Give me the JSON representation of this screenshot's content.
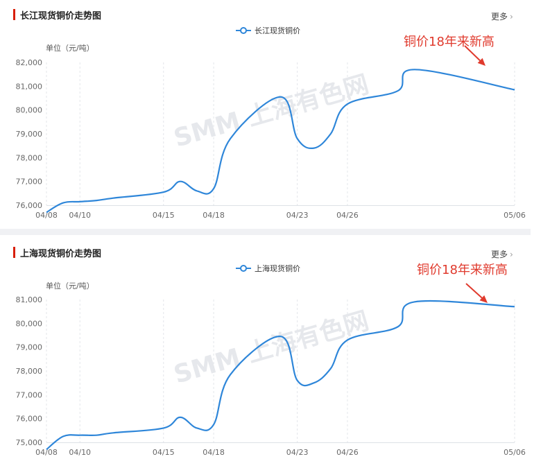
{
  "panels": [
    {
      "title": "长江现货铜价走势图",
      "more_label": "更多",
      "legend_label": "长江现货铜价",
      "unit_label": "单位（元/吨）",
      "annotation": "铜价18年来新高",
      "watermark": "SMM 上海有色网"
    },
    {
      "title": "上海现货铜价走势图",
      "more_label": "更多",
      "legend_label": "上海现货铜价",
      "unit_label": "单位（元/吨）",
      "annotation": "铜价18年来新高",
      "watermark": "SMM 上海有色网"
    }
  ],
  "colors": {
    "line": "#2e86d9",
    "title_bar": "#d81e06",
    "annotation": "#e03a2d"
  },
  "icons": {
    "legend": "circle-line-marker-icon",
    "more": "chevron-right-icon",
    "annotation_arrow": "arrow-down-right-icon"
  },
  "chart_data": [
    {
      "type": "line",
      "title": "长江现货铜价走势图",
      "ylabel": "单位（元/吨）",
      "ylim": [
        76000,
        82000
      ],
      "y_ticks": [
        76000,
        77000,
        78000,
        79000,
        80000,
        81000,
        82000
      ],
      "y_tick_labels": [
        "76,000",
        "77,000",
        "78,000",
        "79,000",
        "80,000",
        "81,000",
        "82,000"
      ],
      "x_tick_labels": [
        "04/08",
        "04/10",
        "04/15",
        "04/18",
        "04/23",
        "04/26",
        "05/06"
      ],
      "grid": "vertical dashed",
      "legend": "top-center",
      "annotation": "铜价18年来新高",
      "series": [
        {
          "name": "长江现货铜价",
          "x": [
            "04/08",
            "04/09",
            "04/10",
            "04/11",
            "04/12",
            "04/15",
            "04/16",
            "04/17",
            "04/18",
            "04/19",
            "04/22",
            "04/23",
            "04/24",
            "04/25",
            "04/26",
            "04/29",
            "04/30",
            "05/06"
          ],
          "values": [
            75700,
            76100,
            76150,
            76200,
            76300,
            76550,
            77000,
            76600,
            76700,
            78800,
            80550,
            78800,
            78400,
            79000,
            80250,
            80800,
            81700,
            80850
          ]
        }
      ]
    },
    {
      "type": "line",
      "title": "上海现货铜价走势图",
      "ylabel": "单位（元/吨）",
      "ylim": [
        75000,
        81000
      ],
      "y_ticks": [
        75000,
        76000,
        77000,
        78000,
        79000,
        80000,
        81000
      ],
      "y_tick_labels": [
        "75,000",
        "76,000",
        "77,000",
        "78,000",
        "79,000",
        "80,000",
        "81,000"
      ],
      "x_tick_labels": [
        "04/08",
        "04/10",
        "04/15",
        "04/18",
        "04/23",
        "04/26",
        "05/06"
      ],
      "grid": "vertical dashed",
      "legend": "top-center",
      "annotation": "铜价18年来新高",
      "series": [
        {
          "name": "上海现货铜价",
          "x": [
            "04/08",
            "04/09",
            "04/10",
            "04/11",
            "04/12",
            "04/15",
            "04/16",
            "04/17",
            "04/18",
            "04/19",
            "04/22",
            "04/23",
            "04/24",
            "04/25",
            "04/26",
            "04/29",
            "04/30",
            "05/06"
          ],
          "values": [
            74700,
            75250,
            75300,
            75300,
            75400,
            75600,
            76050,
            75600,
            75750,
            77850,
            79450,
            77600,
            77500,
            78100,
            79300,
            79850,
            80900,
            80700
          ]
        }
      ]
    }
  ]
}
